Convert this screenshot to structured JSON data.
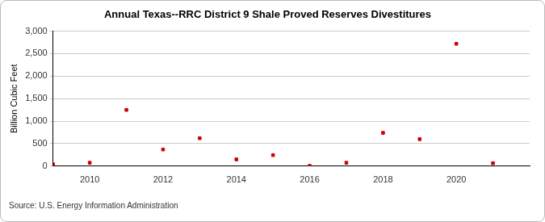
{
  "chart_data": {
    "type": "scatter",
    "title": "Annual Texas--RRC District 9 Shale Proved Reserves Divestitures",
    "y_label": "Billion Cubic Feet",
    "source": "Source: U.S. Energy Information Administration",
    "x": [
      2009,
      2010,
      2011,
      2012,
      2013,
      2014,
      2015,
      2016,
      2017,
      2018,
      2019,
      2020,
      2021
    ],
    "values": [
      40,
      75,
      1250,
      370,
      620,
      150,
      245,
      5,
      75,
      740,
      600,
      2720,
      65
    ],
    "color": "#cc0000",
    "marker": "square",
    "xlim": [
      2009,
      2022
    ],
    "xticks": [
      2010,
      2012,
      2014,
      2016,
      2018,
      2020
    ],
    "ylim": [
      0,
      3000
    ],
    "yticks": [
      0,
      500,
      {
        "value": 1000,
        "label": "1,000"
      },
      {
        "value": 1500,
        "label": "1,500"
      },
      {
        "value": 2000,
        "label": "2,000"
      },
      {
        "value": 2500,
        "label": "2,500"
      },
      {
        "value": 3000,
        "label": "3,000"
      }
    ],
    "grid": true
  }
}
